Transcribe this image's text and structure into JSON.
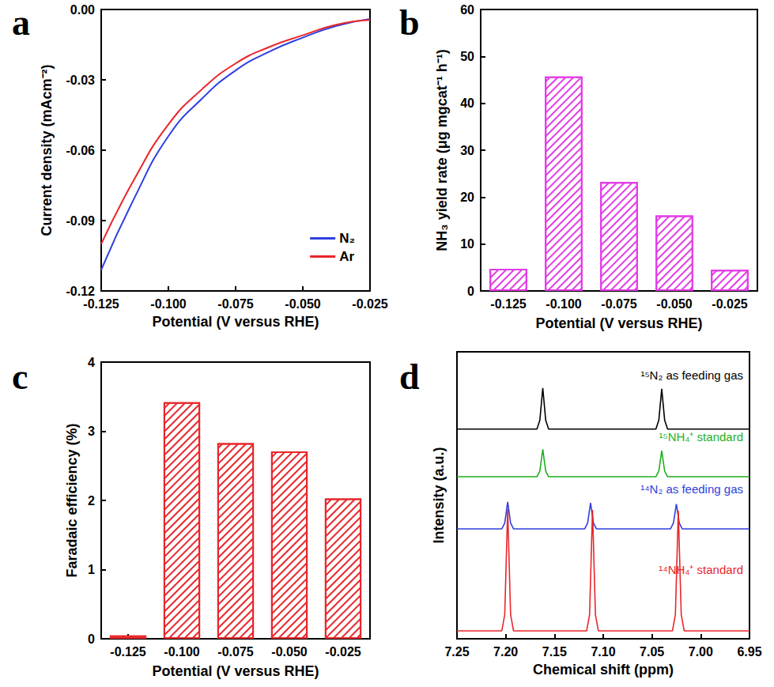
{
  "chart_data": [
    {
      "type": "line",
      "title": "a",
      "xlabel": "Potential (V versus RHE)",
      "ylabel": "Current density (mAcm⁻²)",
      "x": [
        -0.125,
        -0.1125,
        -0.1,
        -0.0875,
        -0.075,
        -0.0625,
        -0.05,
        -0.0375,
        -0.025
      ],
      "series": [
        {
          "name": "N₂",
          "color": "#2f3fe0",
          "values": [
            -0.111,
            -0.08,
            -0.054,
            -0.038,
            -0.026,
            -0.018,
            -0.012,
            -0.007,
            -0.004
          ]
        },
        {
          "name": "Ar",
          "color": "#e8262b",
          "values": [
            -0.1,
            -0.072,
            -0.049,
            -0.034,
            -0.023,
            -0.016,
            -0.011,
            -0.0065,
            -0.0045
          ]
        }
      ],
      "xlim": [
        -0.125,
        -0.025
      ],
      "xticks": [
        -0.125,
        {
          "value": -0.1,
          "label": "-0.100"
        },
        -0.075,
        {
          "value": -0.05,
          "label": "-0.050"
        },
        -0.025
      ],
      "ylim": [
        -0.12,
        0
      ],
      "yticks": [
        -0.12,
        -0.09,
        -0.06,
        -0.03,
        {
          "value": 0,
          "label": "0.00"
        }
      ],
      "legend": "lower right",
      "grid": false
    },
    {
      "type": "bar",
      "title": "b",
      "xlabel": "Potential (V versus RHE)",
      "ylabel": "NH₃ yield rate (μg mgcat⁻¹ h⁻¹)",
      "categories": [
        "-0.125",
        "-0.100",
        "-0.075",
        "-0.050",
        "-0.025"
      ],
      "values": [
        4.7,
        45.7,
        23.2,
        16.1,
        4.5
      ],
      "color": "#e23ce6",
      "ylim": [
        0,
        60
      ],
      "yticks": [
        0,
        10,
        20,
        30,
        40,
        50,
        60
      ],
      "grid": false
    },
    {
      "type": "bar",
      "title": "c",
      "xlabel": "Potential (V versus RHE)",
      "ylabel": "Faradaic efficiency (%)",
      "categories": [
        "-0.125",
        "-0.100",
        "-0.075",
        "-0.050",
        "-0.025"
      ],
      "values": [
        0.05,
        3.42,
        2.83,
        2.71,
        2.03
      ],
      "color": "#e8262b",
      "ylim": [
        0,
        4
      ],
      "yticks": [
        0,
        1,
        2,
        3,
        4
      ],
      "grid": false
    },
    {
      "type": "line",
      "title": "d",
      "xlabel": "Chemical shift (ppm)",
      "ylabel": "Intensity (a.u.)",
      "series": [
        {
          "name": "¹⁵N₂ as feeding gas",
          "color": "#000000",
          "x": [
            7.25,
            7.168,
            7.165,
            7.162,
            7.159,
            7.156,
            7.046,
            7.043,
            7.04,
            7.037,
            7.034,
            6.95
          ],
          "values": [
            4.75,
            4.75,
            4.95,
            5.68,
            4.95,
            4.75,
            4.75,
            4.95,
            5.66,
            4.95,
            4.75,
            4.75
          ]
        },
        {
          "name": "¹⁵NH₄⁺ standard",
          "color": "#1eb01e",
          "x": [
            7.25,
            7.168,
            7.165,
            7.162,
            7.159,
            7.156,
            7.046,
            7.043,
            7.04,
            7.037,
            7.034,
            6.95
          ],
          "values": [
            3.67,
            3.67,
            3.8,
            4.29,
            3.8,
            3.67,
            3.67,
            3.8,
            4.26,
            3.8,
            3.67,
            3.67
          ]
        },
        {
          "name": "¹⁴N₂ as feeding gas",
          "color": "#2f3fe0",
          "x": [
            7.25,
            7.204,
            7.201,
            7.198,
            7.195,
            7.192,
            7.119,
            7.116,
            7.113,
            7.11,
            7.107,
            7.031,
            7.028,
            7.025,
            7.022,
            7.019,
            6.95
          ],
          "values": [
            2.49,
            2.49,
            2.62,
            3.1,
            2.62,
            2.49,
            2.49,
            2.62,
            3.08,
            2.62,
            2.49,
            2.49,
            2.62,
            3.05,
            2.62,
            2.49,
            2.49
          ]
        },
        {
          "name": "¹⁴NH₄⁺ standard",
          "color": "#e8262b",
          "x": [
            7.25,
            7.204,
            7.201,
            7.198,
            7.195,
            7.192,
            7.117,
            7.114,
            7.111,
            7.108,
            7.105,
            7.029,
            7.026,
            7.023,
            7.02,
            7.017,
            6.95
          ],
          "values": [
            0.18,
            0.18,
            0.55,
            2.94,
            0.55,
            0.18,
            0.18,
            0.55,
            2.92,
            0.55,
            0.18,
            0.18,
            0.55,
            2.9,
            0.55,
            0.18,
            0.18
          ]
        }
      ],
      "xlim": [
        7.25,
        6.95
      ],
      "xticks": [
        7.25,
        {
          "value": 7.2,
          "label": "7.20"
        },
        7.15,
        {
          "value": 7.1,
          "label": "7.10"
        },
        7.05,
        {
          "value": 7,
          "label": "7.00"
        },
        6.95
      ],
      "ylim": [
        0,
        6.5
      ],
      "tick_labels": "x",
      "grid": false
    }
  ]
}
